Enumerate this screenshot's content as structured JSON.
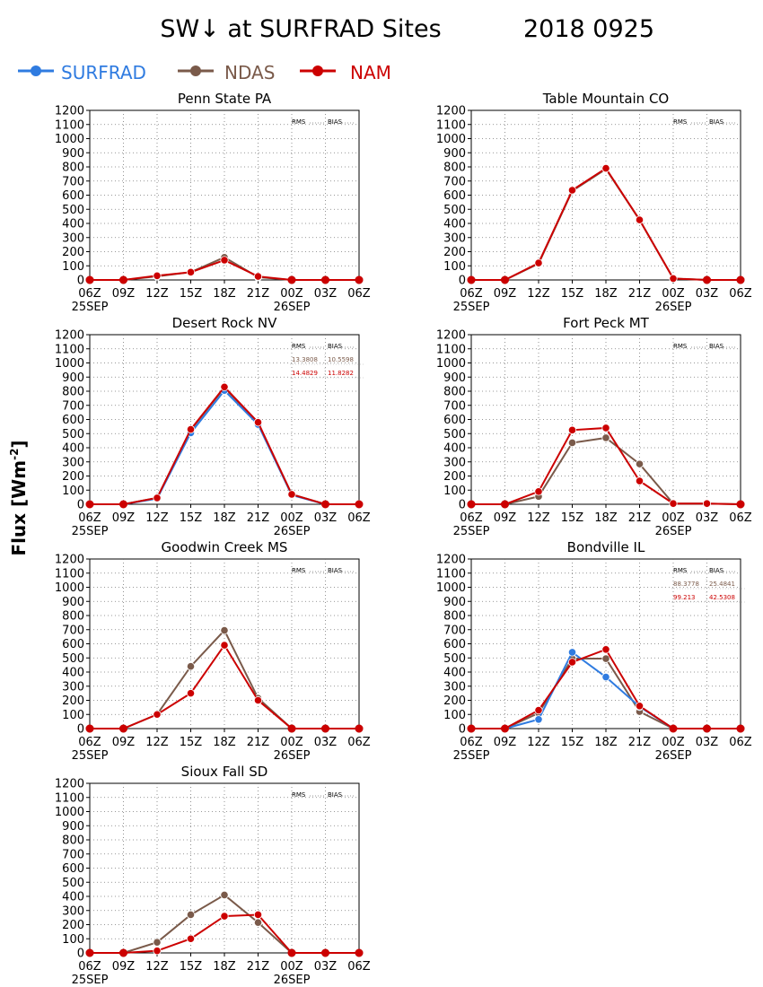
{
  "title": {
    "left": "SW↓ at SURFRAD Sites",
    "right": "2018 0925"
  },
  "ylabel": "Flux [Wm",
  "ylabel_sup": "-2",
  "ylabel_close": "]",
  "legend": [
    {
      "name": "SURFRAD",
      "color": "#2f7be0"
    },
    {
      "name": "NDAS",
      "color": "#7a5a4a"
    },
    {
      "name": "NAM",
      "color": "#cc0000"
    }
  ],
  "stats_headers": {
    "rms": "RMS",
    "bias": "BIAS"
  },
  "x_ticks": [
    "06Z",
    "09Z",
    "12Z",
    "15Z",
    "18Z",
    "21Z",
    "00Z",
    "03Z",
    "06Z"
  ],
  "date_labels": {
    "start": "25SEP",
    "mid": "26SEP"
  },
  "chart_data": [
    {
      "type": "line",
      "title": "Penn State PA",
      "ylim": [
        0,
        1200
      ],
      "yticks": [
        0,
        100,
        200,
        300,
        400,
        500,
        600,
        700,
        800,
        900,
        1000,
        1100,
        1200
      ],
      "grid": true,
      "x": [
        "06Z",
        "09Z",
        "12Z",
        "15Z",
        "18Z",
        "21Z",
        "00Z",
        "03Z",
        "06Z"
      ],
      "stats": {
        "ndas": {
          "rms": "",
          "bias": ""
        },
        "nam": {
          "rms": "",
          "bias": ""
        }
      },
      "series": [
        {
          "name": "SURFRAD",
          "values": [
            null,
            null,
            null,
            null,
            null,
            null,
            null,
            null,
            null
          ]
        },
        {
          "name": "NDAS",
          "values": [
            0,
            0,
            25,
            55,
            160,
            20,
            0,
            0,
            0
          ]
        },
        {
          "name": "NAM",
          "values": [
            0,
            0,
            30,
            55,
            140,
            25,
            0,
            0,
            0
          ]
        }
      ]
    },
    {
      "type": "line",
      "title": "Table Mountain CO",
      "ylim": [
        0,
        1200
      ],
      "yticks": [
        0,
        100,
        200,
        300,
        400,
        500,
        600,
        700,
        800,
        900,
        1000,
        1100,
        1200
      ],
      "grid": true,
      "x": [
        "06Z",
        "09Z",
        "12Z",
        "15Z",
        "18Z",
        "21Z",
        "00Z",
        "03Z",
        "06Z"
      ],
      "stats": {
        "ndas": {
          "rms": "",
          "bias": ""
        },
        "nam": {
          "rms": "",
          "bias": ""
        }
      },
      "series": [
        {
          "name": "SURFRAD",
          "values": [
            null,
            null,
            null,
            null,
            null,
            null,
            null,
            null,
            null
          ]
        },
        {
          "name": "NDAS",
          "values": [
            0,
            0,
            115,
            630,
            785,
            425,
            10,
            0,
            0
          ]
        },
        {
          "name": "NAM",
          "values": [
            0,
            0,
            120,
            635,
            790,
            425,
            10,
            0,
            0
          ]
        }
      ]
    },
    {
      "type": "line",
      "title": "Desert Rock NV",
      "ylim": [
        0,
        1200
      ],
      "yticks": [
        0,
        100,
        200,
        300,
        400,
        500,
        600,
        700,
        800,
        900,
        1000,
        1100,
        1200
      ],
      "grid": true,
      "x": [
        "06Z",
        "09Z",
        "12Z",
        "15Z",
        "18Z",
        "21Z",
        "00Z",
        "03Z",
        "06Z"
      ],
      "stats": {
        "ndas": {
          "rms": "13.3808",
          "bias": "10.5598"
        },
        "nam": {
          "rms": "14.4829",
          "bias": "11.8282"
        }
      },
      "series": [
        {
          "name": "SURFRAD",
          "values": [
            0,
            0,
            40,
            505,
            805,
            565,
            65,
            0,
            0
          ]
        },
        {
          "name": "NDAS",
          "values": [
            0,
            0,
            45,
            525,
            825,
            575,
            70,
            0,
            0
          ]
        },
        {
          "name": "NAM",
          "values": [
            0,
            0,
            45,
            530,
            830,
            580,
            70,
            0,
            0
          ]
        }
      ]
    },
    {
      "type": "line",
      "title": "Fort Peck MT",
      "ylim": [
        0,
        1200
      ],
      "yticks": [
        0,
        100,
        200,
        300,
        400,
        500,
        600,
        700,
        800,
        900,
        1000,
        1100,
        1200
      ],
      "grid": true,
      "x": [
        "06Z",
        "09Z",
        "12Z",
        "15Z",
        "18Z",
        "21Z",
        "00Z",
        "03Z",
        "06Z"
      ],
      "stats": {
        "ndas": {
          "rms": "",
          "bias": ""
        },
        "nam": {
          "rms": "",
          "bias": ""
        }
      },
      "series": [
        {
          "name": "SURFRAD",
          "values": [
            null,
            null,
            null,
            null,
            null,
            null,
            null,
            null,
            null
          ]
        },
        {
          "name": "NDAS",
          "values": [
            0,
            0,
            55,
            435,
            470,
            285,
            5,
            5,
            0
          ]
        },
        {
          "name": "NAM",
          "values": [
            0,
            0,
            90,
            525,
            540,
            165,
            5,
            5,
            0
          ]
        }
      ]
    },
    {
      "type": "line",
      "title": "Goodwin Creek MS",
      "ylim": [
        0,
        1200
      ],
      "yticks": [
        0,
        100,
        200,
        300,
        400,
        500,
        600,
        700,
        800,
        900,
        1000,
        1100,
        1200
      ],
      "grid": true,
      "x": [
        "06Z",
        "09Z",
        "12Z",
        "15Z",
        "18Z",
        "21Z",
        "00Z",
        "03Z",
        "06Z"
      ],
      "stats": {
        "ndas": {
          "rms": "",
          "bias": ""
        },
        "nam": {
          "rms": "",
          "bias": ""
        }
      },
      "series": [
        {
          "name": "SURFRAD",
          "values": [
            null,
            null,
            null,
            null,
            null,
            null,
            null,
            null,
            null
          ]
        },
        {
          "name": "NDAS",
          "values": [
            0,
            0,
            100,
            440,
            695,
            215,
            0,
            0,
            0
          ]
        },
        {
          "name": "NAM",
          "values": [
            0,
            0,
            100,
            250,
            590,
            200,
            0,
            0,
            0
          ]
        }
      ]
    },
    {
      "type": "line",
      "title": "Bondville IL",
      "ylim": [
        0,
        1200
      ],
      "yticks": [
        0,
        100,
        200,
        300,
        400,
        500,
        600,
        700,
        800,
        900,
        1000,
        1100,
        1200
      ],
      "grid": true,
      "x": [
        "06Z",
        "09Z",
        "12Z",
        "15Z",
        "18Z",
        "21Z",
        "00Z",
        "03Z",
        "06Z"
      ],
      "stats": {
        "ndas": {
          "rms": "88.3778",
          "bias": "25.4841"
        },
        "nam": {
          "rms": "99.213",
          "bias": "42.5308"
        }
      },
      "series": [
        {
          "name": "SURFRAD",
          "values": [
            null,
            0,
            65,
            540,
            365,
            155,
            0,
            null,
            null
          ]
        },
        {
          "name": "NDAS",
          "values": [
            0,
            0,
            110,
            495,
            495,
            120,
            0,
            0,
            0
          ]
        },
        {
          "name": "NAM",
          "values": [
            0,
            0,
            130,
            470,
            560,
            160,
            0,
            0,
            0
          ]
        }
      ]
    },
    {
      "type": "line",
      "title": "Sioux Fall SD",
      "ylim": [
        0,
        1200
      ],
      "yticks": [
        0,
        100,
        200,
        300,
        400,
        500,
        600,
        700,
        800,
        900,
        1000,
        1100,
        1200
      ],
      "grid": true,
      "x": [
        "06Z",
        "09Z",
        "12Z",
        "15Z",
        "18Z",
        "21Z",
        "00Z",
        "03Z",
        "06Z"
      ],
      "stats": {
        "ndas": {
          "rms": "",
          "bias": ""
        },
        "nam": {
          "rms": "",
          "bias": ""
        }
      },
      "series": [
        {
          "name": "SURFRAD",
          "values": [
            null,
            null,
            null,
            null,
            null,
            null,
            null,
            null,
            null
          ]
        },
        {
          "name": "NDAS",
          "values": [
            0,
            0,
            75,
            270,
            410,
            215,
            0,
            0,
            0
          ]
        },
        {
          "name": "NAM",
          "values": [
            0,
            0,
            15,
            100,
            260,
            270,
            0,
            0,
            0
          ]
        }
      ]
    }
  ]
}
